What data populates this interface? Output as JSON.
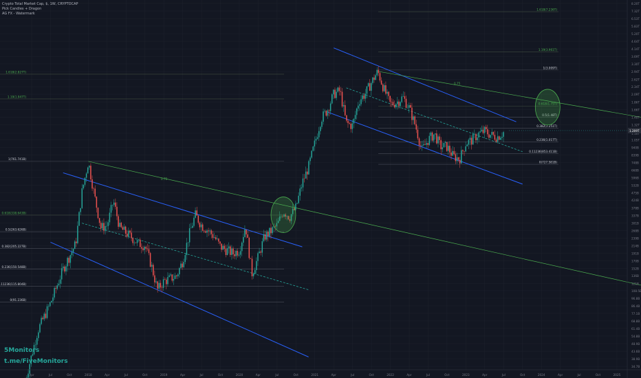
{
  "header": {
    "symbol": "Crypto Total Market Cap, $, 1W, CRYPTOCAP",
    "indicator1": "Pick Candles + Dragon",
    "indicator2": "AG FX - Watermark"
  },
  "watermark": {
    "brand": "5Monitors",
    "link": "t.me/FiveMonitors",
    "color": "#26a69a"
  },
  "colors": {
    "background": "#131722",
    "up": "#26a69a",
    "down": "#ef5350",
    "channel": "#2962ff",
    "trendline": "#4caf50",
    "fib_gold": "#4caf50",
    "grid": "#1e222d",
    "text": "#d1d4dc"
  },
  "chart_data": {
    "type": "candlestick",
    "y_scale": "log",
    "x_ticks": [
      "Apr",
      "Jul",
      "Oct",
      "2018",
      "Apr",
      "Jul",
      "Oct",
      "2019",
      "Apr",
      "Jul",
      "Oct",
      "2020",
      "Apr",
      "Jul",
      "Oct",
      "2021",
      "Apr",
      "Jul",
      "Oct",
      "2022",
      "Apr",
      "Jul",
      "Oct",
      "2023",
      "Apr",
      "Jul",
      "Oct",
      "2024",
      "Apr",
      "Jul",
      "Oct",
      "2025"
    ],
    "y_ticks": [
      "8.20T",
      "7.32T",
      "6.53T",
      "5.83T",
      "5.20T",
      "4.64T",
      "4.14T",
      "3.69T",
      "3.30T",
      "2.94T",
      "2.62T",
      "2.34T",
      "2.09T",
      "1.86T",
      "1.66T",
      "1.48T",
      "1.32T",
      "1.16T",
      "1.05T",
      "940B",
      "839B",
      "748B",
      "668B",
      "596B",
      "532B",
      "475B",
      "424B",
      "378B",
      "337B",
      "301B",
      "268B",
      "239B",
      "214B",
      "191B",
      "170B",
      "152B",
      "136B",
      "121B",
      "108.5B",
      "96.8B",
      "86.4B",
      "77.1B",
      "68.8B",
      "61.4B",
      "54.8B",
      "48.9B",
      "43.6B",
      "38.9B",
      "34.7B",
      "31B"
    ],
    "last_price": "1.209T",
    "fib_left": [
      {
        "label": "1.618(2.827T)",
        "color": "#4caf50"
      },
      {
        "label": "1.19(1.947T)",
        "color": "#4caf50"
      },
      {
        "label": "1(761.741B)",
        "color": "#d1d4dc"
      },
      {
        "label": "0.618(338.643B)",
        "color": "#4caf50"
      },
      {
        "label": "0.5(263.626B)",
        "color": "#d1d4dc"
      },
      {
        "label": "0.382(205.227B)",
        "color": "#d1d4dc"
      },
      {
        "label": "0.236(150.548B)",
        "color": "#d1d4dc"
      },
      {
        "label": "0.11236(115.804B)",
        "color": "#d1d4dc"
      },
      {
        "label": "0(91.236B)",
        "color": "#d1d4dc"
      }
    ],
    "fib_right": [
      {
        "label": "1.618(7.236T)",
        "color": "#4caf50"
      },
      {
        "label": "1.19(3.961T)",
        "color": "#4caf50"
      },
      {
        "label": "1(3.009T)",
        "color": "#d1d4dc"
      },
      {
        "label": "0.618(1.75T)",
        "color": "#4caf50"
      },
      {
        "label": "0.5(1.48T)",
        "color": "#d1d4dc"
      },
      {
        "label": "0.382(1.251T)",
        "color": "#d1d4dc"
      },
      {
        "label": "0.236(1.017T)",
        "color": "#d1d4dc"
      },
      {
        "label": "0.11236(853.411B)",
        "color": "#d1d4dc"
      },
      {
        "label": "0(727.581B)",
        "color": "#d1d4dc"
      }
    ],
    "trend_label_left": "0.75",
    "trend_label_right": "0.75",
    "price_path": [
      [
        "2017-03",
        28
      ],
      [
        "2017-05",
        60
      ],
      [
        "2017-07",
        90
      ],
      [
        "2017-09",
        150
      ],
      [
        "2017-11",
        220
      ],
      [
        "2017-12",
        480
      ],
      [
        "2018-01",
        760
      ],
      [
        "2018-02",
        450
      ],
      [
        "2018-03",
        280
      ],
      [
        "2018-04",
        290
      ],
      [
        "2018-05",
        420
      ],
      [
        "2018-06",
        280
      ],
      [
        "2018-08",
        240
      ],
      [
        "2018-09",
        220
      ],
      [
        "2018-10",
        215
      ],
      [
        "2018-11",
        160
      ],
      [
        "2018-12",
        110
      ],
      [
        "2019-01",
        125
      ],
      [
        "2019-03",
        135
      ],
      [
        "2019-04",
        170
      ],
      [
        "2019-05",
        250
      ],
      [
        "2019-06",
        340
      ],
      [
        "2019-07",
        290
      ],
      [
        "2019-08",
        270
      ],
      [
        "2019-09",
        245
      ],
      [
        "2019-10",
        210
      ],
      [
        "2019-11",
        200
      ],
      [
        "2019-12",
        190
      ],
      [
        "2020-01",
        200
      ],
      [
        "2020-02",
        290
      ],
      [
        "2020-03",
        140
      ],
      [
        "2020-04",
        180
      ],
      [
        "2020-05",
        245
      ],
      [
        "2020-06",
        265
      ],
      [
        "2020-07",
        290
      ],
      [
        "2020-08",
        360
      ],
      [
        "2020-09",
        330
      ],
      [
        "2020-10",
        380
      ],
      [
        "2020-11",
        550
      ],
      [
        "2020-12",
        700
      ],
      [
        "2021-01",
        1000
      ],
      [
        "2021-02",
        1450
      ],
      [
        "2021-03",
        1650
      ],
      [
        "2021-04",
        2100
      ],
      [
        "2021-05",
        2200
      ],
      [
        "2021-06",
        1350
      ],
      [
        "2021-07",
        1300
      ],
      [
        "2021-08",
        1900
      ],
      [
        "2021-09",
        2100
      ],
      [
        "2021-10",
        2500
      ],
      [
        "2021-11",
        2950
      ],
      [
        "2021-12",
        2250
      ],
      [
        "2022-01",
        1800
      ],
      [
        "2022-02",
        1850
      ],
      [
        "2022-03",
        2000
      ],
      [
        "2022-04",
        1700
      ],
      [
        "2022-05",
        1300
      ],
      [
        "2022-06",
        900
      ],
      [
        "2022-07",
        1050
      ],
      [
        "2022-08",
        1150
      ],
      [
        "2022-09",
        950
      ],
      [
        "2022-10",
        950
      ],
      [
        "2022-11",
        820
      ],
      [
        "2022-12",
        790
      ],
      [
        "2023-01",
        1000
      ],
      [
        "2023-02",
        1050
      ],
      [
        "2023-03",
        1150
      ],
      [
        "2023-04",
        1200
      ],
      [
        "2023-05",
        1130
      ],
      [
        "2023-06",
        1100
      ],
      [
        "2023-07",
        1180
      ]
    ]
  }
}
